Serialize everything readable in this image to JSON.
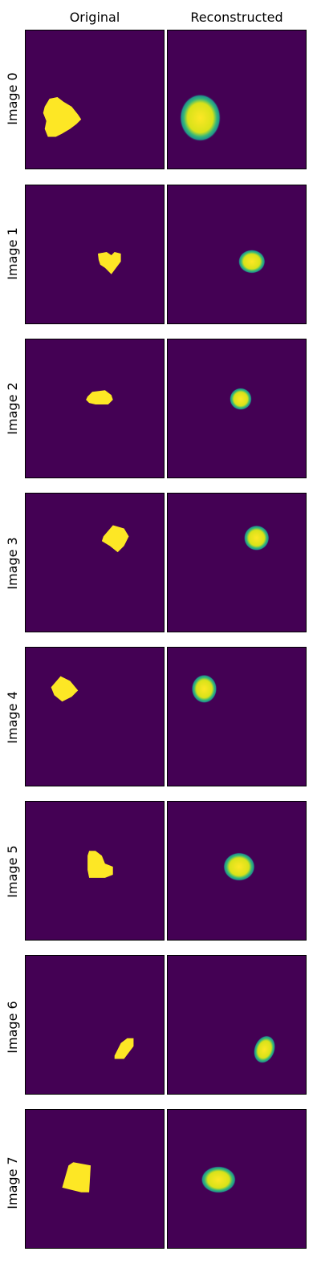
{
  "columns": {
    "original": "Original",
    "reconstructed": "Reconstructed"
  },
  "rows": [
    {
      "label": "Image 0"
    },
    {
      "label": "Image 1"
    },
    {
      "label": "Image 2"
    },
    {
      "label": "Image 3"
    },
    {
      "label": "Image 4"
    },
    {
      "label": "Image 5"
    },
    {
      "label": "Image 6"
    },
    {
      "label": "Image 7"
    }
  ],
  "colors": {
    "background": "#440154",
    "shape": "#fde725",
    "edge": "#21918c"
  }
}
